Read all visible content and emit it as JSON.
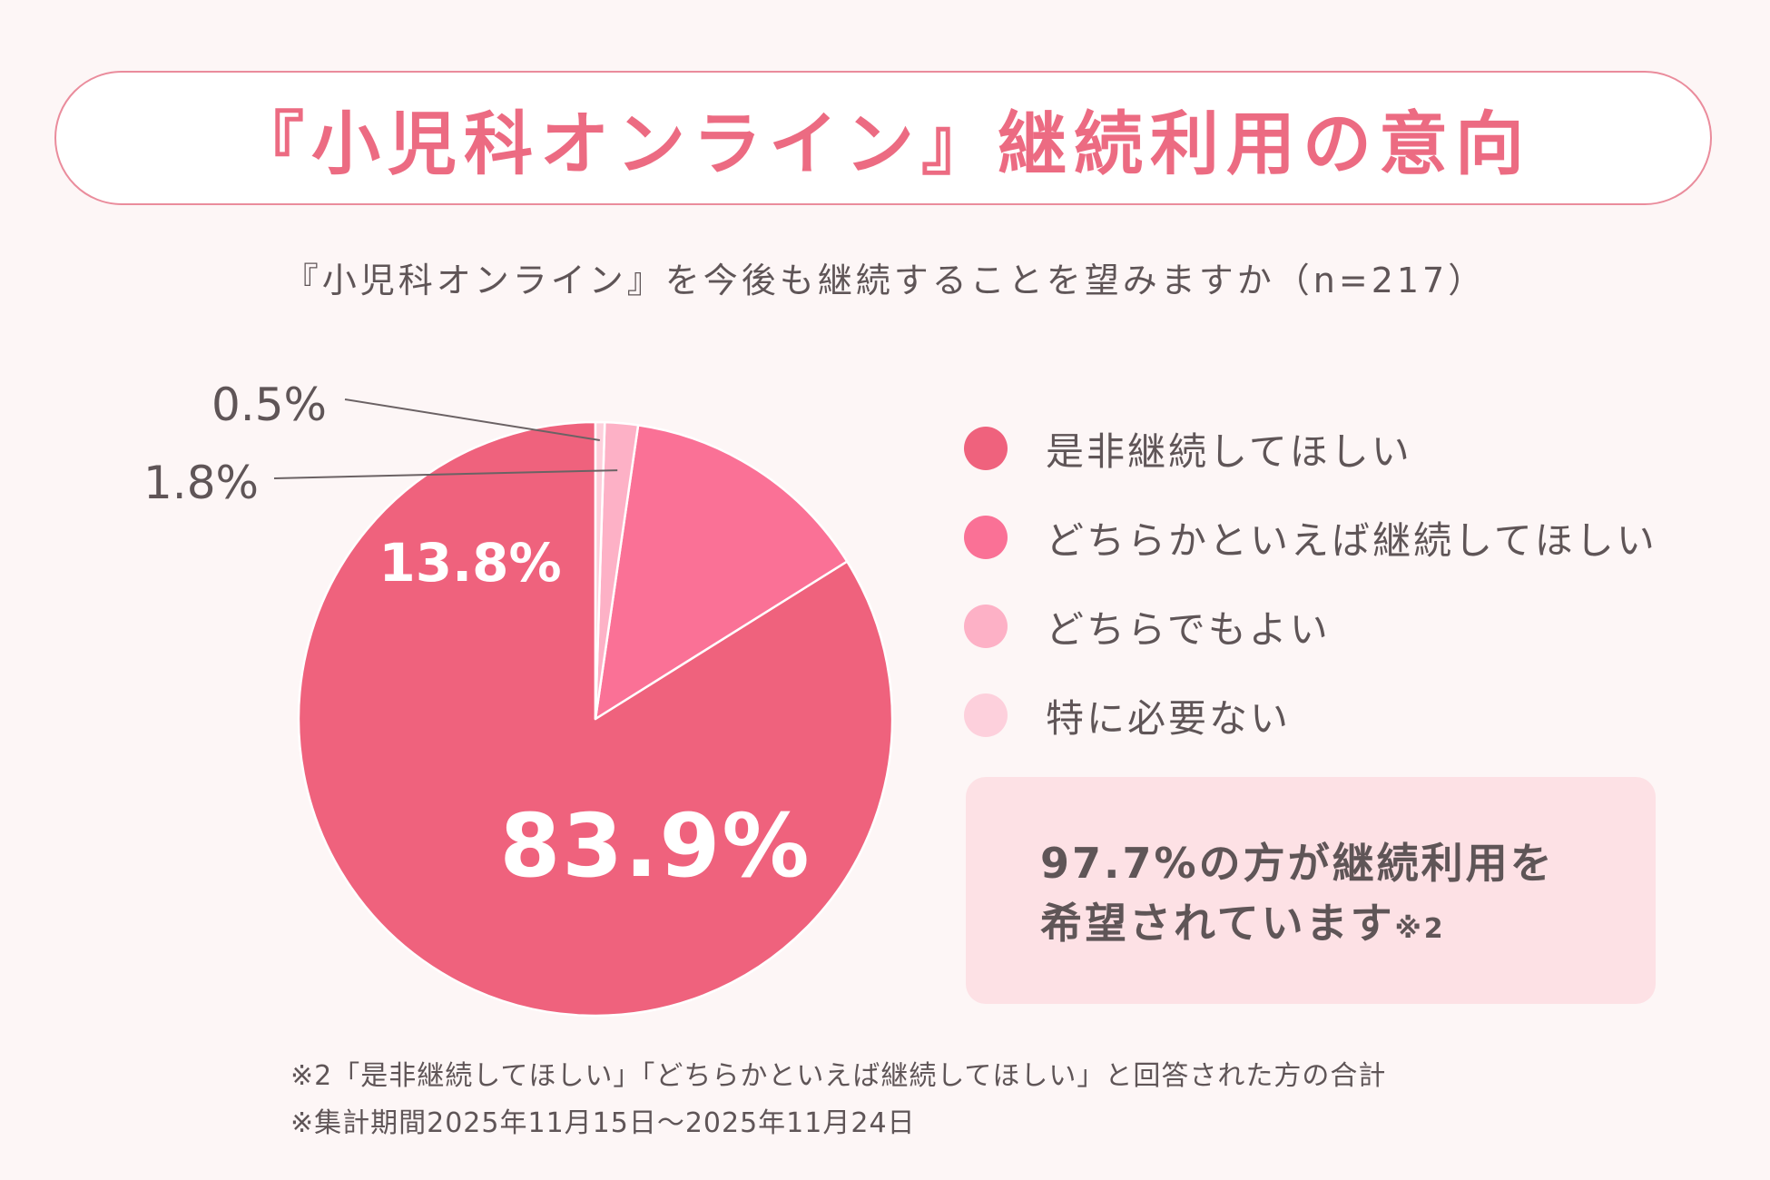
{
  "header": {
    "title": "『小児科オンライン』継続利用の意向",
    "subtitle": "『小児科オンライン』を今後も継続することを望みますか（n=217）"
  },
  "chart_data": {
    "type": "pie",
    "categories": [
      "是非継続してほしい",
      "どちらかといえば継続してほしい",
      "どちらでもよい",
      "特に必要ない"
    ],
    "values": [
      83.9,
      13.8,
      1.8,
      0.5
    ],
    "value_labels": [
      "83.9%",
      "13.8%",
      "1.8%",
      "0.5%"
    ],
    "colors": [
      "#ef627d",
      "#fa7196",
      "#fdb1c6",
      "#fdd0dc"
    ],
    "start_angle": "12 o'clock",
    "direction": "counterclockwise",
    "legend_position": "right"
  },
  "legend": {
    "items": [
      {
        "label": "是非継続してほしい",
        "color": "#ef627d"
      },
      {
        "label": "どちらかといえば継続してほしい",
        "color": "#fa7196"
      },
      {
        "label": "どちらでもよい",
        "color": "#fdb1c6"
      },
      {
        "label": "特に必要ない",
        "color": "#fdd0dc"
      }
    ]
  },
  "callout": {
    "line1": "97.7%の方が継続利用を",
    "line2": "希望されています",
    "note": "※2"
  },
  "footnotes": {
    "note1": "※2「是非継続してほしい」「どちらかといえば継続してほしい」と回答された方の合計",
    "note2": "※集計期間2025年11月15日〜2025年11月24日"
  },
  "colors": {
    "background": "#fdf6f6",
    "accent": "#ec6b82",
    "text": "#5f5557",
    "callout_bg": "#fde1e5"
  }
}
